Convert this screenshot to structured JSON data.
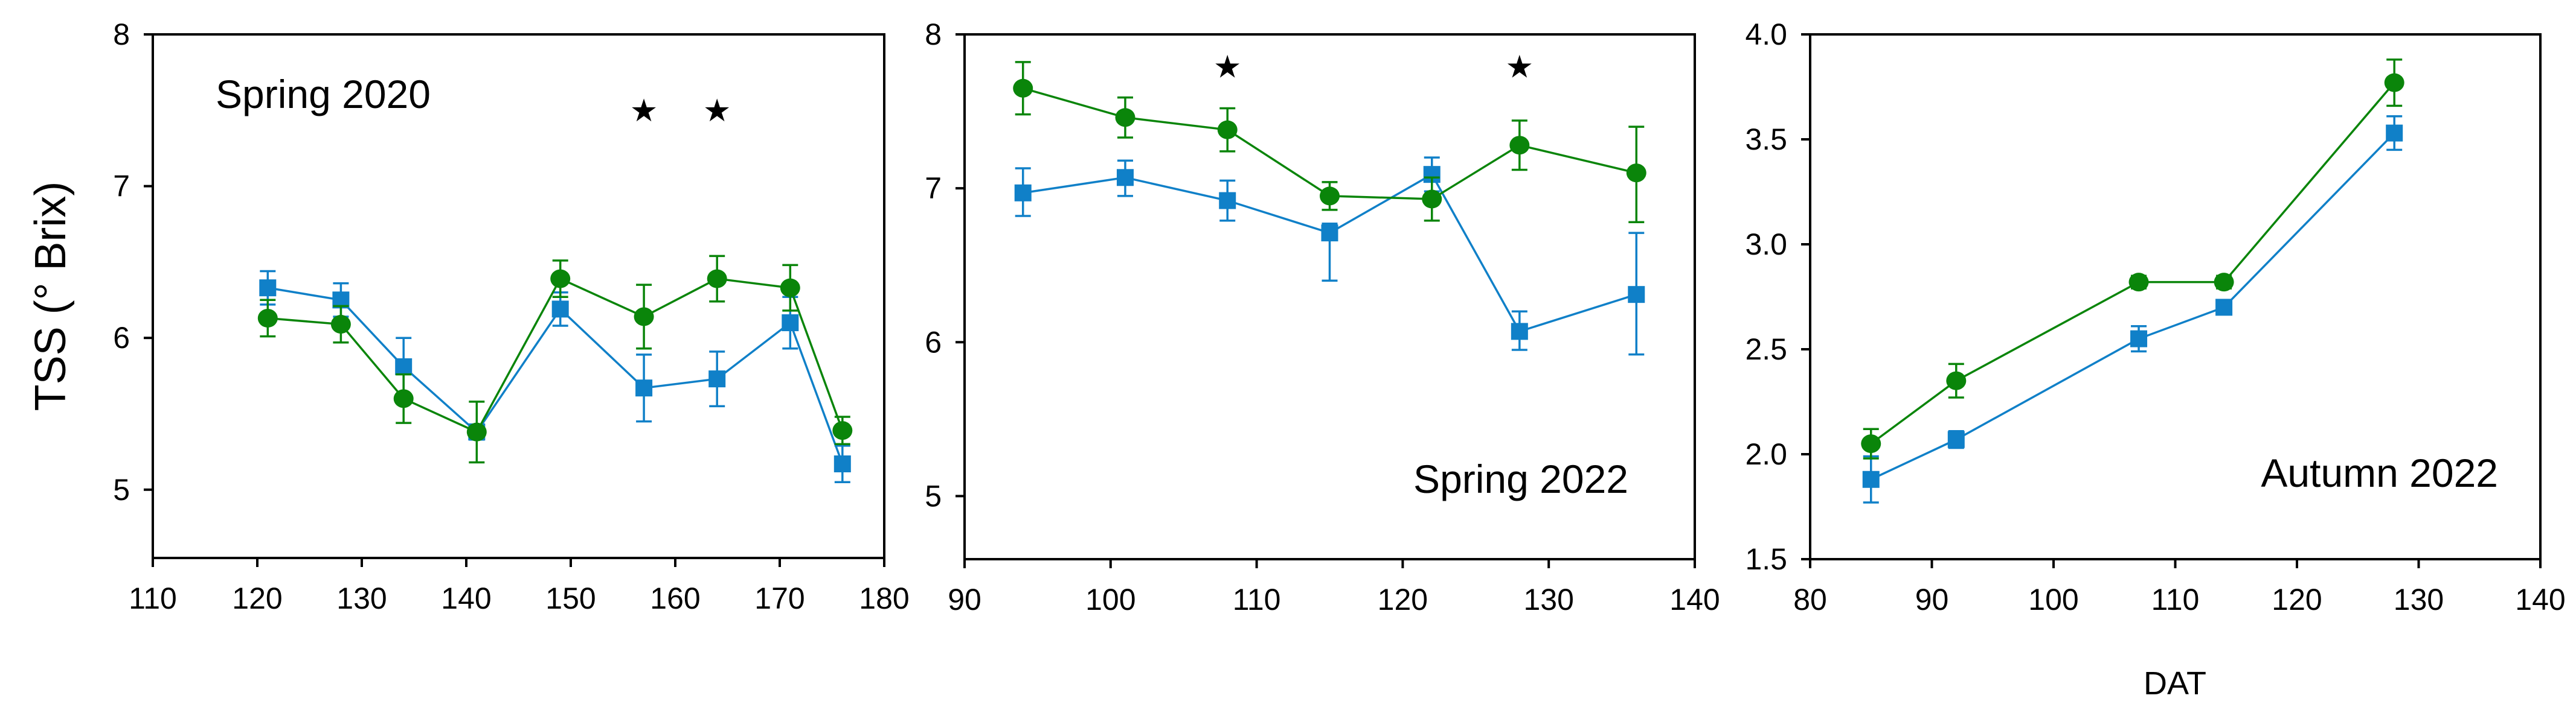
{
  "figure": {
    "y_axis_label": "TSS (° Brix)",
    "x_axis_label": "DAT",
    "background_color": "#ffffff",
    "frame_color": "#000000",
    "text_color": "#000000",
    "star_symbol": "★"
  },
  "series_info": {
    "blue": {
      "name": "blue-square-series",
      "marker": "square",
      "color": "#1080c8"
    },
    "green": {
      "name": "green-circle-series",
      "marker": "circle",
      "color": "#0a850a"
    }
  },
  "chart_data": [
    {
      "type": "line",
      "title": "Spring 2020",
      "title_position": "top-left",
      "xlim": [
        110,
        180
      ],
      "ylim": [
        4.55,
        8
      ],
      "x_ticks": [
        110,
        120,
        130,
        140,
        150,
        160,
        170,
        180
      ],
      "x_tick_labels": [
        "110",
        "120",
        "130",
        "140",
        "150",
        "160",
        "170",
        "180"
      ],
      "y_ticks": [
        8,
        7,
        6,
        5
      ],
      "y_tick_labels": [
        "8",
        "7",
        "6",
        "5"
      ],
      "x": [
        121,
        128,
        134,
        141,
        149,
        157,
        164,
        171,
        176
      ],
      "series": [
        {
          "key": "blue",
          "values": [
            6.33,
            6.25,
            5.81,
            5.38,
            6.19,
            5.67,
            5.73,
            6.1,
            5.17
          ],
          "err_up": [
            0.11,
            0.11,
            0.19,
            0.05,
            0.11,
            0.22,
            0.18,
            0.17,
            0.12
          ],
          "err_down": [
            0.11,
            0.11,
            0.19,
            0.05,
            0.11,
            0.22,
            0.18,
            0.17,
            0.12
          ]
        },
        {
          "key": "green",
          "values": [
            6.13,
            6.09,
            5.6,
            5.38,
            6.39,
            6.14,
            6.39,
            6.33,
            5.39
          ],
          "err_up": [
            0.12,
            0.12,
            0.16,
            0.2,
            0.12,
            0.21,
            0.15,
            0.15,
            0.09
          ],
          "err_down": [
            0.12,
            0.12,
            0.16,
            0.2,
            0.12,
            0.21,
            0.15,
            0.15,
            0.09
          ]
        }
      ],
      "stars": [
        {
          "x": 157,
          "y": 7.5
        },
        {
          "x": 164,
          "y": 7.5
        }
      ]
    },
    {
      "type": "line",
      "title": "Spring 2022",
      "title_position": "bottom-right",
      "xlim": [
        90,
        140
      ],
      "ylim": [
        4.59,
        8
      ],
      "x_ticks": [
        90,
        100,
        110,
        120,
        130,
        140
      ],
      "x_tick_labels": [
        "90",
        "100",
        "110",
        "120",
        "130",
        "140"
      ],
      "y_ticks": [
        8,
        7,
        6,
        5
      ],
      "y_tick_labels": [
        "8",
        "7",
        "6",
        "5"
      ],
      "x": [
        94,
        101,
        108,
        115,
        122,
        128,
        136
      ],
      "series": [
        {
          "key": "blue",
          "values": [
            6.97,
            7.07,
            6.92,
            6.71,
            7.09,
            6.07,
            6.31
          ],
          "err_up": [
            0.16,
            0.11,
            0.13,
            0.06,
            0.11,
            0.13,
            0.4
          ],
          "err_down": [
            0.15,
            0.12,
            0.13,
            0.31,
            0.11,
            0.12,
            0.39
          ]
        },
        {
          "key": "green",
          "values": [
            7.65,
            7.46,
            7.38,
            6.95,
            6.93,
            7.28,
            7.1
          ],
          "err_up": [
            0.17,
            0.13,
            0.14,
            0.09,
            0.14,
            0.16,
            0.3
          ],
          "err_down": [
            0.17,
            0.13,
            0.14,
            0.09,
            0.14,
            0.16,
            0.32
          ]
        }
      ],
      "stars": [
        {
          "x": 108,
          "y": 7.79
        },
        {
          "x": 128,
          "y": 7.79
        }
      ]
    },
    {
      "type": "line",
      "title": "Autumn 2022",
      "title_position": "bottom-right",
      "xlim": [
        80,
        140
      ],
      "ylim": [
        1.5,
        4.0
      ],
      "x_ticks": [
        80,
        90,
        100,
        110,
        120,
        130,
        140
      ],
      "x_tick_labels": [
        "80",
        "90",
        "100",
        "110",
        "120",
        "130",
        "140"
      ],
      "y_ticks": [
        4.0,
        3.5,
        3.0,
        2.5,
        2.0,
        1.5
      ],
      "y_tick_labels": [
        "4.0",
        "3.5",
        "3.0",
        "2.5",
        "2.0",
        "1.5"
      ],
      "x": [
        85,
        92,
        107,
        114,
        128
      ],
      "series": [
        {
          "key": "blue",
          "values": [
            1.88,
            2.07,
            2.55,
            2.7,
            3.53
          ],
          "err_up": [
            0.11,
            0.04,
            0.06,
            0.03,
            0.08
          ],
          "err_down": [
            0.11,
            0.04,
            0.06,
            0.03,
            0.08
          ]
        },
        {
          "key": "green",
          "values": [
            2.05,
            2.35,
            2.82,
            2.82,
            3.77
          ],
          "err_up": [
            0.07,
            0.08,
            0.03,
            0.03,
            0.11
          ],
          "err_down": [
            0.07,
            0.08,
            0.03,
            0.03,
            0.11
          ]
        }
      ],
      "stars": []
    }
  ]
}
